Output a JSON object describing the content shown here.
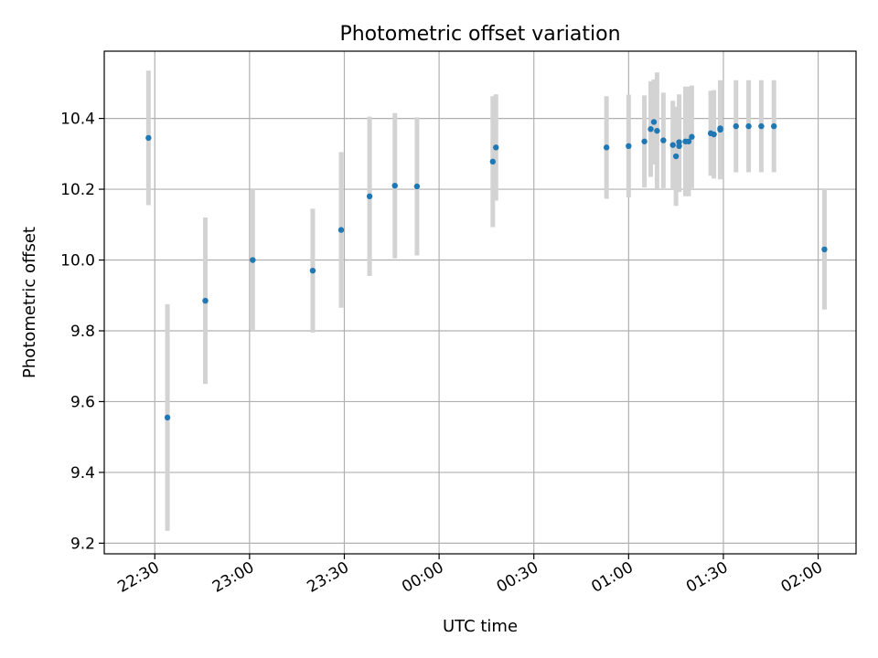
{
  "chart_data": {
    "type": "scatter",
    "title": "Photometric offset variation",
    "xlabel": "UTC time",
    "ylabel": "Photometric offset",
    "y_ticks": [
      9.2,
      9.4,
      9.6,
      9.8,
      10.0,
      10.2,
      10.4
    ],
    "y_tick_labels": [
      "9.2",
      "9.4",
      "9.6",
      "9.8",
      "10.0",
      "10.2",
      "10.4"
    ],
    "ylim": [
      9.17,
      10.59
    ],
    "x_ticks": [
      "22:30",
      "23:00",
      "23:30",
      "00:00",
      "00:30",
      "01:00",
      "01:30",
      "02:00"
    ],
    "xlim": [
      "22:14",
      "02:12"
    ],
    "grid": true,
    "colors": {
      "points": "#1f77b4",
      "errorbars": "#d3d3d3"
    },
    "points": [
      {
        "x": "22:28",
        "y": 10.345,
        "err": 0.19
      },
      {
        "x": "22:34",
        "y": 9.555,
        "err": 0.32
      },
      {
        "x": "22:46",
        "y": 9.885,
        "err": 0.235
      },
      {
        "x": "23:01",
        "y": 10.0,
        "err": 0.2
      },
      {
        "x": "23:20",
        "y": 9.97,
        "err": 0.175
      },
      {
        "x": "23:29",
        "y": 10.085,
        "err": 0.22
      },
      {
        "x": "23:38",
        "y": 10.18,
        "err": 0.225
      },
      {
        "x": "23:46",
        "y": 10.21,
        "err": 0.205
      },
      {
        "x": "23:53",
        "y": 10.208,
        "err": 0.195
      },
      {
        "x": "00:17",
        "y": 10.278,
        "err": 0.185
      },
      {
        "x": "00:18",
        "y": 10.318,
        "err": 0.15
      },
      {
        "x": "00:53",
        "y": 10.318,
        "err": 0.145
      },
      {
        "x": "01:00",
        "y": 10.322,
        "err": 0.145
      },
      {
        "x": "01:05",
        "y": 10.335,
        "err": 0.13
      },
      {
        "x": "01:07",
        "y": 10.37,
        "err": 0.135
      },
      {
        "x": "01:08",
        "y": 10.39,
        "err": 0.12
      },
      {
        "x": "01:09",
        "y": 10.365,
        "err": 0.165
      },
      {
        "x": "01:11",
        "y": 10.338,
        "err": 0.135
      },
      {
        "x": "01:14",
        "y": 10.325,
        "err": 0.125
      },
      {
        "x": "01:15",
        "y": 10.293,
        "err": 0.14
      },
      {
        "x": "01:16",
        "y": 10.333,
        "err": 0.135
      },
      {
        "x": "01:16",
        "y": 10.322,
        "err": 0.13
      },
      {
        "x": "01:18",
        "y": 10.335,
        "err": 0.155
      },
      {
        "x": "01:19",
        "y": 10.335,
        "err": 0.155
      },
      {
        "x": "01:20",
        "y": 10.348,
        "err": 0.145
      },
      {
        "x": "01:26",
        "y": 10.358,
        "err": 0.12
      },
      {
        "x": "01:27",
        "y": 10.355,
        "err": 0.125
      },
      {
        "x": "01:29",
        "y": 10.368,
        "err": 0.14
      },
      {
        "x": "01:29",
        "y": 10.372,
        "err": 0.13
      },
      {
        "x": "01:34",
        "y": 10.378,
        "err": 0.13
      },
      {
        "x": "01:38",
        "y": 10.378,
        "err": 0.13
      },
      {
        "x": "01:42",
        "y": 10.378,
        "err": 0.13
      },
      {
        "x": "01:46",
        "y": 10.378,
        "err": 0.13
      },
      {
        "x": "02:02",
        "y": 10.03,
        "err": 0.17
      }
    ]
  }
}
